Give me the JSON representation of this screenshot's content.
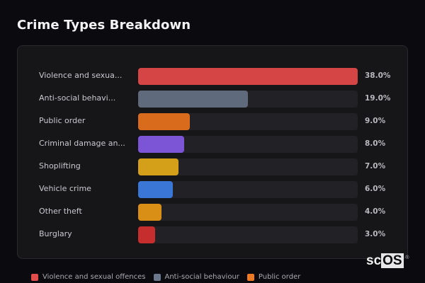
{
  "header": {
    "title": "Crime Types Breakdown"
  },
  "chart_data": {
    "type": "bar",
    "orientation": "horizontal",
    "title": "Crime Types Breakdown",
    "xlabel": "",
    "ylabel": "",
    "xlim": [
      0,
      38
    ],
    "grid": false,
    "legend_position": "bottom",
    "categories": [
      "Violence and sexual offences",
      "Anti-social behaviour",
      "Public order",
      "Criminal damage and arson",
      "Shoplifting",
      "Vehicle crime",
      "Other theft",
      "Burglary"
    ],
    "display_labels": [
      "Violence and sexua...",
      "Anti-social behavi...",
      "Public order",
      "Criminal damage an...",
      "Shoplifting",
      "Vehicle crime",
      "Other theft",
      "Burglary"
    ],
    "values": [
      38.0,
      19.0,
      9.0,
      8.0,
      7.0,
      6.0,
      4.0,
      3.0
    ],
    "value_labels": [
      "38.0%",
      "19.0%",
      "9.0%",
      "8.0%",
      "7.0%",
      "6.0%",
      "4.0%",
      "3.0%"
    ],
    "colors": [
      "#d64545",
      "#5f6b7c",
      "#d96b1d",
      "#7b55d6",
      "#d4a01a",
      "#3a76d6",
      "#d98e15",
      "#c62d2d"
    ]
  },
  "legend": {
    "items": [
      {
        "label": "Violence and sexual offences",
        "color": "#e14c4c"
      },
      {
        "label": "Anti-social behaviour",
        "color": "#6b778a"
      },
      {
        "label": "Public order",
        "color": "#f07a22"
      }
    ]
  },
  "watermark": {
    "text_a": "sc",
    "text_b": "OS",
    "mark": "®"
  }
}
